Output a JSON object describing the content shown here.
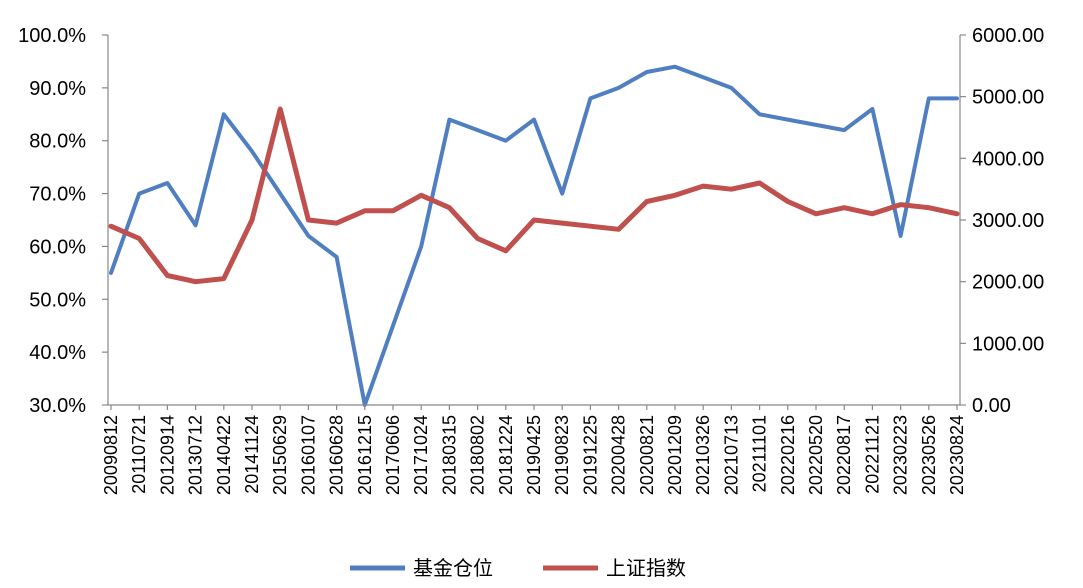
{
  "chart_data": {
    "type": "line",
    "title": "",
    "xlabel": "",
    "ylabel": "",
    "legend_position": "bottom-center",
    "grid": false,
    "colors": {
      "fund_position": "#4F7FC0",
      "shanghai_index": "#C0504D"
    },
    "x": [
      "20090812",
      "20110721",
      "20120914",
      "20130712",
      "20140422",
      "20141124",
      "20150629",
      "20160107",
      "20160628",
      "20161215",
      "20170606",
      "20171024",
      "20180315",
      "20180802",
      "20181224",
      "20190425",
      "20190823",
      "20191225",
      "20200428",
      "20200821",
      "20201209",
      "20210326",
      "20210713",
      "20211101",
      "20220216",
      "20220520",
      "20220817",
      "20221121",
      "20230223",
      "20230526",
      "20230824"
    ],
    "y_left": {
      "ylim": [
        0.3,
        1.0
      ],
      "ticks": [
        "30.0%",
        "40.0%",
        "50.0%",
        "60.0%",
        "70.0%",
        "80.0%",
        "90.0%",
        "100.0%"
      ],
      "tick_values": [
        0.3,
        0.4,
        0.5,
        0.6,
        0.7,
        0.8,
        0.9,
        1.0
      ]
    },
    "y_right": {
      "ylim": [
        0,
        6000
      ],
      "ticks": [
        "0.00",
        "1000.00",
        "2000.00",
        "3000.00",
        "4000.00",
        "5000.00",
        "6000.00"
      ],
      "tick_values": [
        0,
        1000,
        2000,
        3000,
        4000,
        5000,
        6000
      ]
    },
    "series": [
      {
        "name": "基金仓位",
        "axis": "left",
        "values": [
          0.55,
          0.7,
          0.72,
          0.64,
          0.85,
          0.78,
          0.7,
          0.62,
          0.58,
          0.3,
          0.45,
          0.6,
          0.84,
          0.82,
          0.8,
          0.84,
          0.7,
          0.88,
          0.9,
          0.93,
          0.94,
          0.92,
          0.9,
          0.85,
          0.84,
          0.83,
          0.82,
          0.86,
          0.62,
          0.88,
          0.88
        ]
      },
      {
        "name": "上证指数",
        "axis": "right",
        "values": [
          2900,
          2700,
          2100,
          2000,
          2050,
          3000,
          4800,
          3000,
          2950,
          3150,
          3150,
          3400,
          3200,
          2700,
          2500,
          3000,
          2950,
          2900,
          2850,
          3300,
          3400,
          3550,
          3500,
          3600,
          3300,
          3100,
          3200,
          3100,
          3250,
          3200,
          3100
        ]
      }
    ]
  }
}
